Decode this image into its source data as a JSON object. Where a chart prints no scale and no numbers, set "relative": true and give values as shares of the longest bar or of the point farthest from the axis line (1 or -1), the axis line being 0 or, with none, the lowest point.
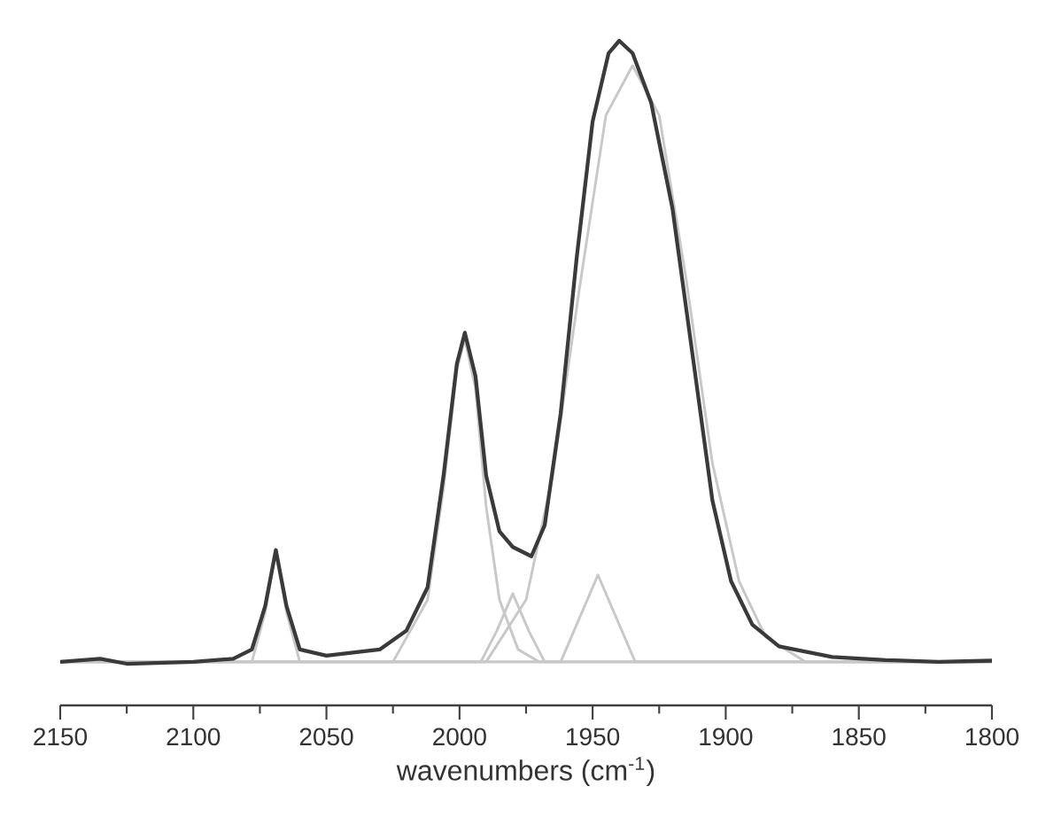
{
  "chart_data": {
    "type": "line",
    "relative": true,
    "xlabel": "wavenumbers (cm$^{-1}$)",
    "xlim": [
      2150,
      1800
    ],
    "xticks": [
      2150,
      2100,
      2050,
      2000,
      1950,
      1900,
      1850,
      1800
    ],
    "series": [
      {
        "color": "#c8c8c8",
        "x": [
          2150,
          2078,
          2073,
          2069,
          2065,
          2060,
          1800
        ],
        "values": [
          0,
          0,
          0.08,
          0.18,
          0.08,
          0,
          0
        ]
      },
      {
        "color": "#c8c8c8",
        "x": [
          2150,
          2025,
          2012,
          2006,
          2001,
          1998,
          1994,
          1990,
          1985,
          1978,
          1970,
          1800
        ],
        "values": [
          0,
          0,
          0.1,
          0.28,
          0.47,
          0.52,
          0.44,
          0.25,
          0.1,
          0.02,
          0,
          0
        ]
      },
      {
        "color": "#c8c8c8",
        "x": [
          2150,
          1992,
          1986,
          1980,
          1974,
          1968,
          1800
        ],
        "values": [
          0,
          0,
          0.05,
          0.11,
          0.05,
          0,
          0
        ]
      },
      {
        "color": "#c8c8c8",
        "x": [
          2150,
          1962,
          1955,
          1948,
          1941,
          1934,
          1800
        ],
        "values": [
          0,
          0,
          0.07,
          0.14,
          0.07,
          0,
          0
        ]
      },
      {
        "color": "#c8c8c8",
        "x": [
          2150,
          1990,
          1975,
          1965,
          1955,
          1945,
          1935,
          1925,
          1915,
          1905,
          1895,
          1885,
          1870,
          1800
        ],
        "values": [
          0,
          0,
          0.1,
          0.3,
          0.6,
          0.88,
          0.96,
          0.88,
          0.62,
          0.32,
          0.13,
          0.04,
          0,
          0
        ]
      },
      {
        "color": "#3a3a3a",
        "x": [
          2150,
          2135,
          2125,
          2100,
          2085,
          2078,
          2073,
          2069,
          2065,
          2060,
          2050,
          2030,
          2020,
          2012,
          2006,
          2001,
          1998,
          1994,
          1990,
          1985,
          1980,
          1973,
          1968,
          1962,
          1956,
          1950,
          1944,
          1940,
          1935,
          1928,
          1920,
          1912,
          1905,
          1898,
          1890,
          1880,
          1860,
          1840,
          1820,
          1800
        ],
        "values": [
          0,
          0.005,
          -0.003,
          0,
          0.005,
          0.02,
          0.09,
          0.18,
          0.09,
          0.02,
          0.01,
          0.02,
          0.05,
          0.12,
          0.3,
          0.48,
          0.53,
          0.46,
          0.3,
          0.21,
          0.185,
          0.17,
          0.22,
          0.4,
          0.65,
          0.87,
          0.98,
          1.0,
          0.98,
          0.9,
          0.73,
          0.48,
          0.26,
          0.13,
          0.06,
          0.025,
          0.008,
          0.003,
          0,
          0.002
        ]
      }
    ]
  }
}
